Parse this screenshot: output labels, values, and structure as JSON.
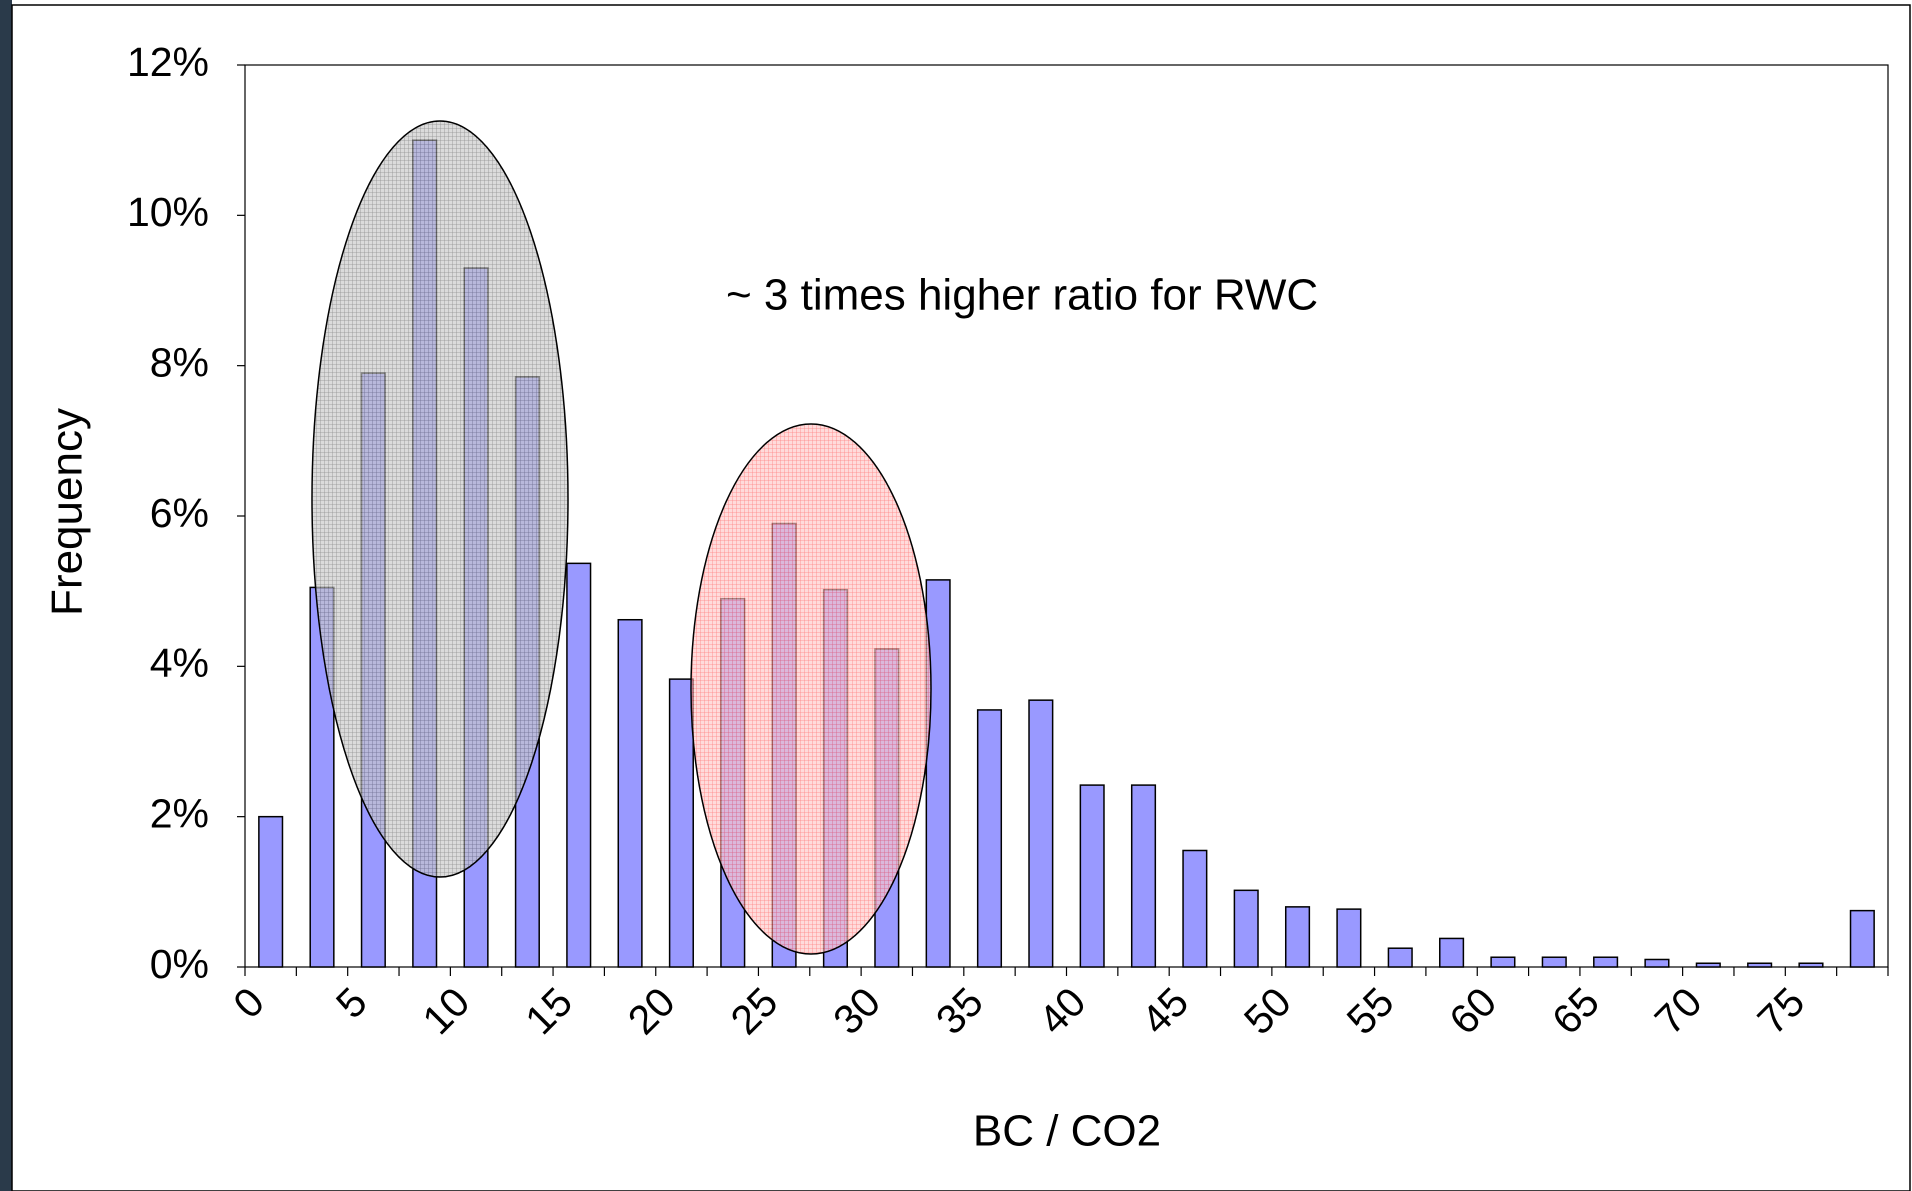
{
  "chart_data": {
    "type": "histogram",
    "annotation": "~ 3 times higher ratio for RWC",
    "x_label": "BC / CO2",
    "y_label": "Frequency",
    "color": "#9999ff",
    "bins": [
      0,
      2.5,
      5,
      7.5,
      10,
      12.5,
      15,
      17.5,
      20,
      22.5,
      25,
      27.5,
      30,
      32.5,
      35,
      37.5,
      40,
      42.5,
      45,
      47.5,
      50,
      52.5,
      55,
      57.5,
      60,
      62.5,
      65,
      67.5,
      70,
      72.5,
      75,
      77.5,
      80
    ],
    "values": [
      2.0,
      5.05,
      7.9,
      11.0,
      9.3,
      7.85,
      5.37,
      4.62,
      3.83,
      4.9,
      5.9,
      5.02,
      4.23,
      5.15,
      3.42,
      3.55,
      2.42,
      2.42,
      1.55,
      1.02,
      0.8,
      0.77,
      0.25,
      0.38,
      0.13,
      0.13,
      0.13,
      0.1,
      0.05,
      0.05,
      0.05,
      0.75
    ],
    "xlim": [
      0,
      80
    ],
    "xticks": [
      0,
      5,
      10,
      15,
      20,
      25,
      30,
      35,
      40,
      45,
      50,
      55,
      60,
      65,
      70,
      75
    ],
    "ylim": [
      0,
      12
    ],
    "yticks": [
      {
        "value": 0,
        "label": "0%"
      },
      {
        "value": 2,
        "label": "2%"
      },
      {
        "value": 4,
        "label": "4%"
      },
      {
        "value": 6,
        "label": "6%"
      },
      {
        "value": 8,
        "label": "8%"
      },
      {
        "value": 10,
        "label": "10%"
      },
      {
        "value": 12,
        "label": "12%"
      }
    ]
  }
}
